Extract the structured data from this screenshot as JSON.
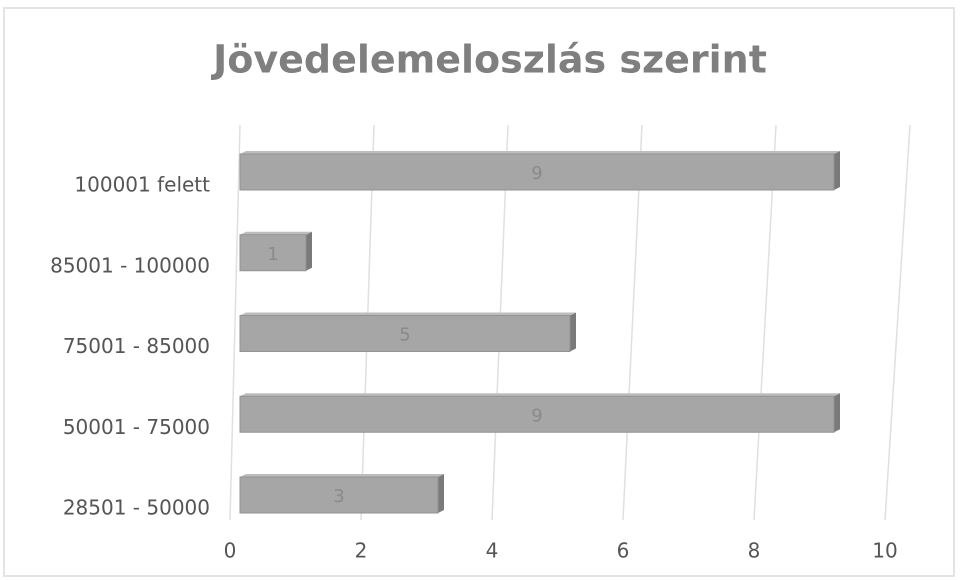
{
  "chart_data": {
    "type": "hbar",
    "title": "Jövedelemeloszlás szerint",
    "categories": [
      "100001 felett",
      "85001 - 100000",
      "75001 - 85000",
      "50001 - 75000",
      "28501 - 50000"
    ],
    "values": [
      9,
      1,
      5,
      9,
      3
    ],
    "color": "#a6a6a6",
    "xlim": [
      0,
      10
    ],
    "xticks": [
      0,
      2,
      4,
      6,
      8,
      10
    ],
    "grid": true
  }
}
